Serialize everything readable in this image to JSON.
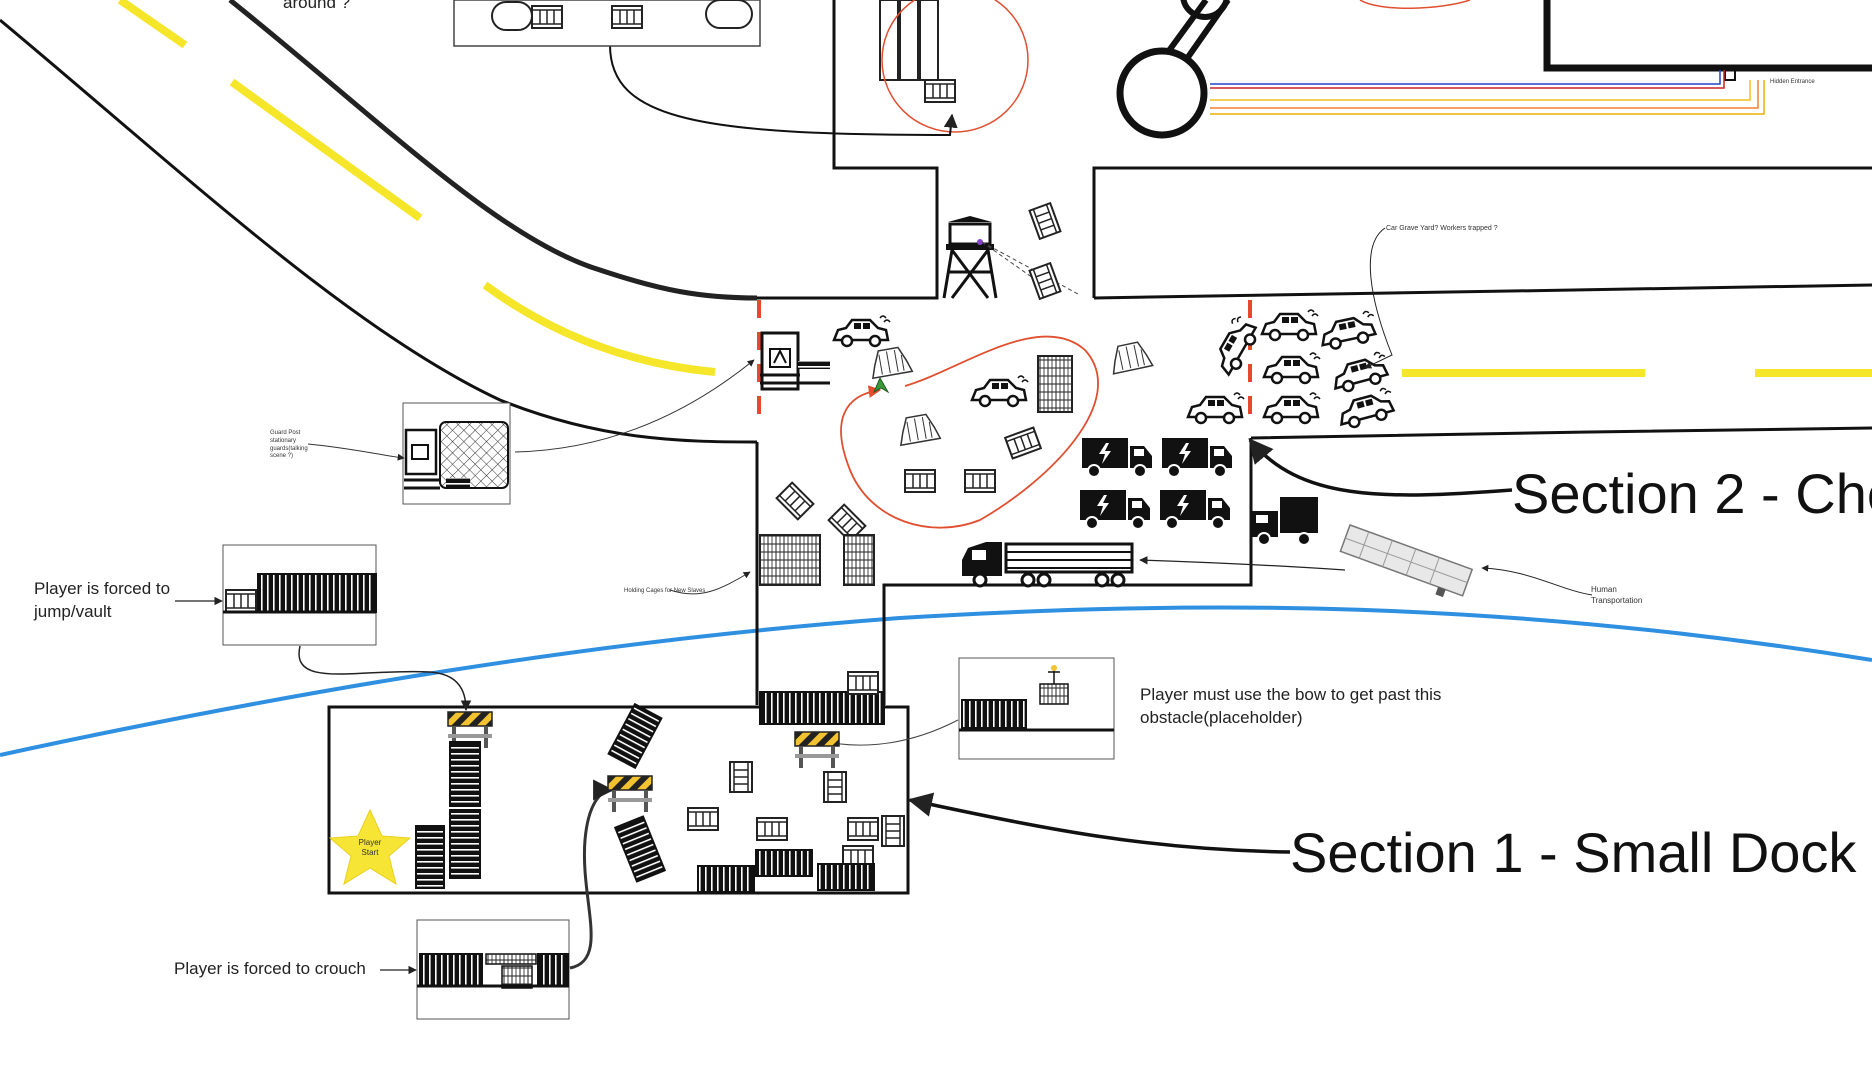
{
  "sections": {
    "section1": "Section 1 - Small Dock",
    "section2": "Section 2 - Che"
  },
  "notes": {
    "top_fragment": "around ?",
    "jump_vault": "Player is forced to jump/vault",
    "crouch": "Player is forced to crouch",
    "bow": "Player must use the bow to get past this obstacle(placeholder)",
    "guard_post": "Guard Post stationary guards(talking scene ?)",
    "holding_cages": "Holding Cages for New Slaves",
    "car_graveyard": "Car Grave Yard? Workers trapped ?",
    "human_transport": "Human Transportation",
    "hidden_entrance": "Hidden Entrance",
    "player_start": "Player Start"
  },
  "colors": {
    "road_line": "#f5e62a",
    "river": "#2f8fe0",
    "patrol_loop": "#e05030",
    "barrier_dash": "#e8492c",
    "star": "#f7e535",
    "marker": "#3a9a3a"
  }
}
